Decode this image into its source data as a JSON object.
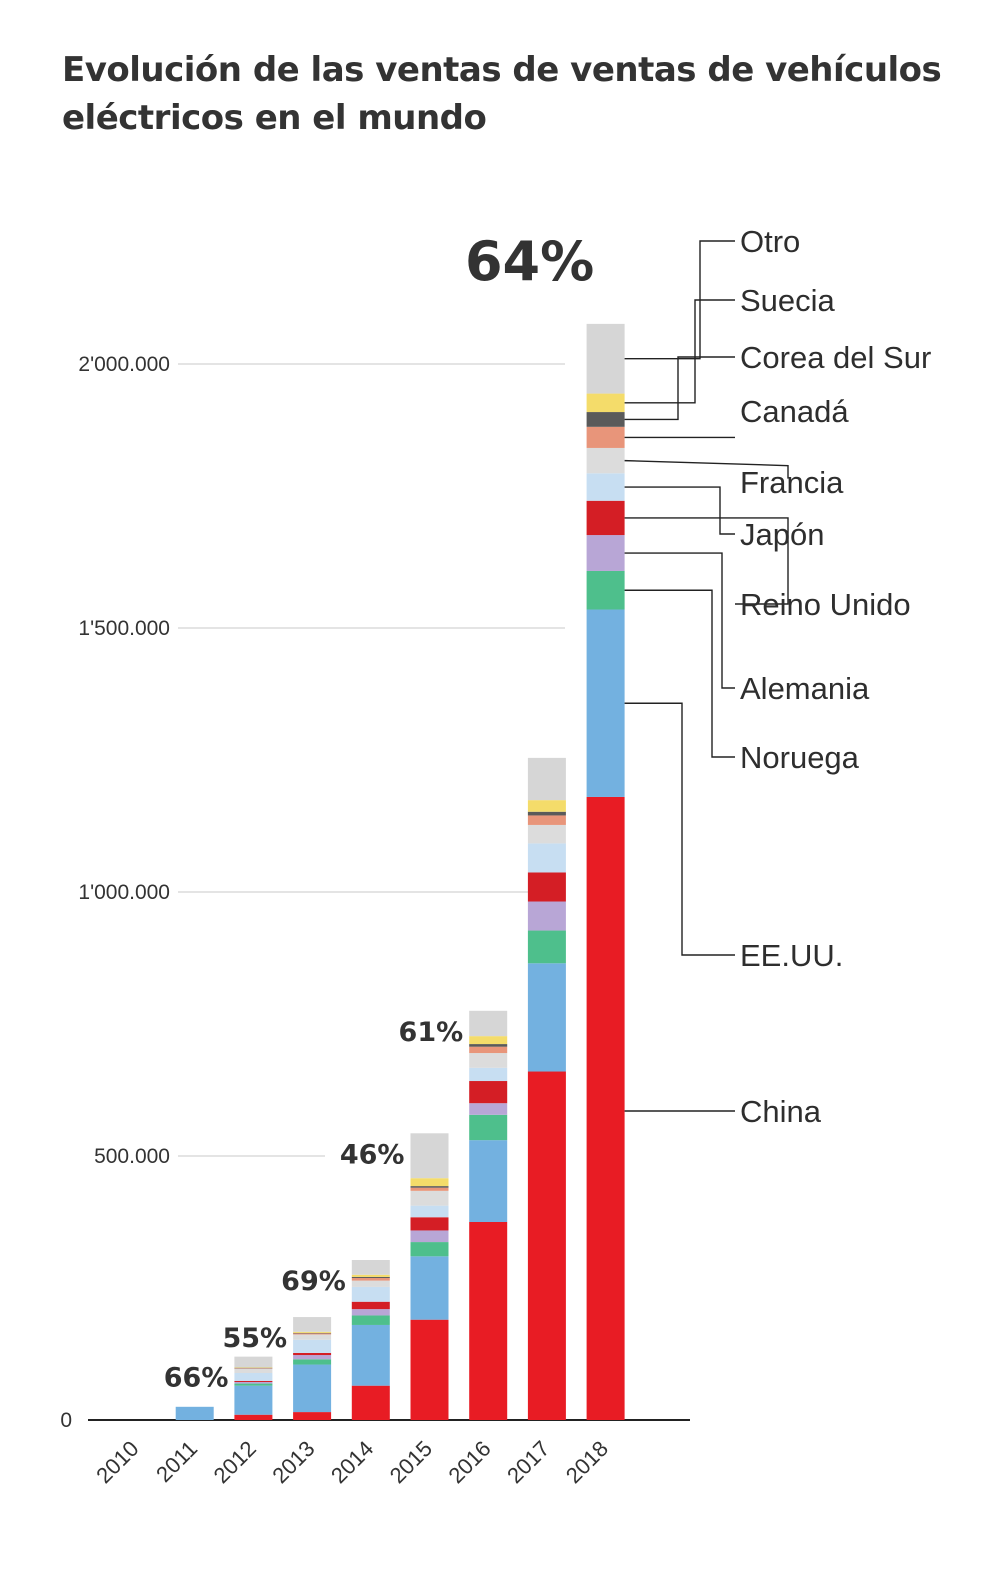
{
  "chart_data": {
    "type": "bar",
    "stacked": true,
    "title": "Evolución de las ventas de ventas de vehículos eléctricos en el mundo",
    "categories": [
      "2010",
      "2011",
      "2012",
      "2013",
      "2014",
      "2015",
      "2016",
      "2017",
      "2018"
    ],
    "y_ticks": [
      {
        "value": 0,
        "label": "0"
      },
      {
        "value": 500000,
        "label": "500.000"
      },
      {
        "value": 1000000,
        "label": "1'000.000"
      },
      {
        "value": 1500000,
        "label": "1'500.000"
      },
      {
        "value": 2000000,
        "label": "2'000.000"
      }
    ],
    "ylim": [
      0,
      2100000
    ],
    "grid": true,
    "legend_position": "right",
    "series": [
      {
        "name": "China",
        "color": "#e81c24",
        "values": [
          0,
          0,
          10000,
          15000,
          65000,
          190000,
          375000,
          660000,
          1180000
        ]
      },
      {
        "name": "EE.UU.",
        "color": "#73b1e0",
        "values": [
          0,
          25000,
          55000,
          90000,
          115000,
          120000,
          155000,
          205000,
          355000
        ]
      },
      {
        "name": "Noruega",
        "color": "#4ebf8c",
        "values": [
          0,
          0,
          4000,
          10000,
          18000,
          27000,
          48000,
          62000,
          73000
        ]
      },
      {
        "name": "Alemania",
        "color": "#b8a6d6",
        "values": [
          0,
          0,
          3000,
          8000,
          12000,
          22000,
          22000,
          55000,
          68000
        ]
      },
      {
        "name": "Reino Unido",
        "color": "#d41e25",
        "values": [
          0,
          0,
          2000,
          4000,
          14000,
          25000,
          42000,
          55000,
          65000
        ]
      },
      {
        "name": "Japón",
        "color": "#c7def2",
        "values": [
          0,
          0,
          15000,
          25000,
          28000,
          22000,
          25000,
          55000,
          52000
        ]
      },
      {
        "name": "Francia",
        "color": "#dcdcdc",
        "values": [
          0,
          0,
          8000,
          10000,
          12000,
          28000,
          28000,
          35000,
          48000
        ]
      },
      {
        "name": "Canadá",
        "color": "#e8957a",
        "values": [
          0,
          0,
          1000,
          2000,
          5000,
          6000,
          12000,
          18000,
          40000
        ]
      },
      {
        "name": "Corea del Sur",
        "color": "#5a5a5a",
        "values": [
          0,
          0,
          1000,
          1000,
          2000,
          3000,
          5000,
          7000,
          28000
        ]
      },
      {
        "name": "Suecia",
        "color": "#f4dc6a",
        "values": [
          0,
          0,
          1000,
          2000,
          4000,
          15000,
          15000,
          22000,
          35000
        ]
      },
      {
        "name": "Otro",
        "color": "#d6d6d6",
        "values": [
          0,
          0,
          20000,
          28000,
          28000,
          85000,
          48000,
          80000,
          132000
        ]
      }
    ],
    "annotations": [
      {
        "category": "2012",
        "text": "66%"
      },
      {
        "category": "2013",
        "text": "55%"
      },
      {
        "category": "2014",
        "text": "69%"
      },
      {
        "category": "2015",
        "text": "46%"
      },
      {
        "category": "2016",
        "text": "61%"
      },
      {
        "category": "2018",
        "text": "64%"
      }
    ]
  }
}
